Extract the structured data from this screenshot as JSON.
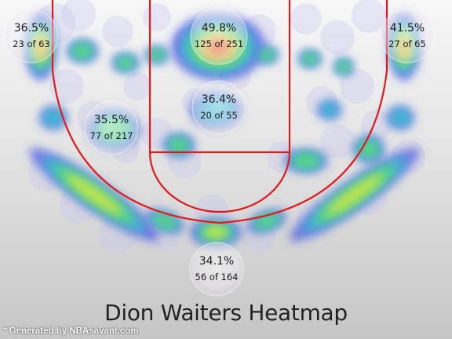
{
  "chart_data": {
    "type": "heatmap",
    "title": "Dion Waiters Heatmap",
    "zones": [
      {
        "name": "left-corner-three",
        "pct": "36.5%",
        "made": 23,
        "att": 63,
        "label": "23 of 63"
      },
      {
        "name": "restricted-area",
        "pct": "49.8%",
        "made": 125,
        "att": 251,
        "label": "125 of 251"
      },
      {
        "name": "right-corner-three",
        "pct": "41.5%",
        "made": 27,
        "att": 65,
        "label": "27 of 65"
      },
      {
        "name": "paint-non-ra",
        "pct": "36.4%",
        "made": 20,
        "att": 55,
        "label": "20 of 55"
      },
      {
        "name": "mid-range",
        "pct": "35.5%",
        "made": 77,
        "att": 217,
        "label": "77 of 217"
      },
      {
        "name": "above-break-three",
        "pct": "34.1%",
        "made": 56,
        "att": 164,
        "label": "56 of 164"
      }
    ],
    "color_scale": [
      "#4a58e0",
      "#33c8d0",
      "#5fe06a",
      "#e8e83a",
      "#f5a133",
      "#f23a2a"
    ],
    "court_line_color": "#e01b1b"
  },
  "credit": "* Generated by NBAsavant.com"
}
